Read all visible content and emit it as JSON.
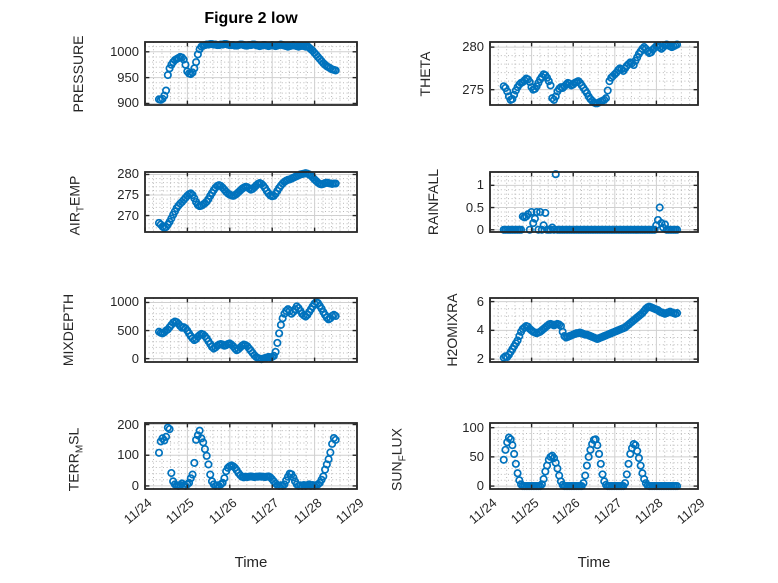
{
  "title": "Figure 2 low",
  "xlabel": "Time",
  "colors": {
    "marker": "#0072BD",
    "axis": "#262626",
    "grid_major": "#d0d0d0",
    "grid_minor": "#b9b9b9",
    "title_text": "#000000",
    "tick_text": "#262626"
  },
  "x_axis": {
    "tick_labels": [
      "11/24",
      "11/25",
      "11/26",
      "11/27",
      "11/28",
      "11/29"
    ],
    "range_days": [
      0,
      5
    ],
    "minor_step_days": 0.2
  },
  "sampling": {
    "start_day": 0.33,
    "step_days": 0.0416667
  },
  "chart_data": [
    {
      "id": "pressure",
      "type": "scatter",
      "marker": "open-circle",
      "ylabel": "PRESSURE",
      "ylabel_parts": [
        {
          "t": "PRESSURE"
        }
      ],
      "yticks": [
        1000,
        950,
        900
      ],
      "ytick_labels": [
        "1000",
        "950",
        "900"
      ],
      "ylim": [
        897,
        1019
      ],
      "yminor": 10,
      "values": [
        908,
        907,
        909,
        915,
        925,
        955,
        968,
        975,
        980,
        984,
        986,
        988,
        990,
        989,
        985,
        975,
        962,
        958,
        957,
        960,
        968,
        980,
        995,
        1005,
        1010,
        1012,
        1013,
        1014,
        1014,
        1015,
        1015,
        1014,
        1014,
        1013,
        1013,
        1014,
        1014,
        1015,
        1015,
        1014,
        1013,
        1013,
        1013,
        1012,
        1012,
        1013,
        1014,
        1014,
        1013,
        1012,
        1012,
        1013,
        1013,
        1014,
        1014,
        1013,
        1012,
        1011,
        1012,
        1013,
        1013,
        1012,
        1011,
        1012,
        1013,
        1012,
        1011,
        1012,
        1013,
        1014,
        1013,
        1012,
        1011,
        1010,
        1011,
        1012,
        1013,
        1012,
        1011,
        1010,
        1011,
        1012,
        1011,
        1010,
        1011,
        1008,
        1005,
        1002,
        998,
        994,
        990,
        986,
        982,
        978,
        975,
        972,
        970,
        968,
        966,
        965,
        964
      ]
    },
    {
      "id": "theta",
      "type": "scatter",
      "marker": "open-circle",
      "ylabel": "THETA",
      "ylabel_parts": [
        {
          "t": "THETA"
        }
      ],
      "yticks": [
        280,
        275
      ],
      "ytick_labels": [
        "280",
        "275"
      ],
      "ylim": [
        273.2,
        280.6
      ],
      "yminor": 1,
      "values": [
        275.4,
        275.2,
        274.8,
        274.2,
        273.8,
        273.9,
        274.4,
        274.9,
        275.3,
        275.6,
        275.8,
        275.9,
        276.1,
        276.3,
        276.2,
        275.9,
        275.3,
        275.0,
        275.1,
        275.4,
        275.8,
        276.2,
        276.5,
        276.8,
        276.7,
        276.4,
        276.0,
        275.5,
        274.0,
        273.8,
        274.2,
        274.8,
        275.1,
        275.3,
        275.2,
        275.4,
        275.6,
        275.8,
        275.7,
        275.5,
        275.6,
        275.8,
        275.9,
        276.0,
        275.8,
        275.5,
        275.2,
        274.9,
        274.6,
        274.2,
        273.9,
        273.7,
        273.5,
        273.4,
        273.4,
        273.5,
        273.6,
        273.7,
        273.8,
        274.0,
        274.9,
        276.0,
        276.4,
        276.6,
        276.8,
        277.0,
        277.3,
        277.5,
        277.4,
        277.2,
        277.5,
        277.8,
        278.0,
        278.2,
        278.1,
        277.9,
        278.4,
        278.8,
        279.2,
        279.5,
        279.8,
        280.0,
        279.8,
        279.5,
        279.3,
        279.4,
        279.7,
        279.9,
        280.1,
        280.2,
        280.0,
        279.8,
        280.0,
        280.2,
        280.3,
        280.2,
        280.1,
        280.0,
        280.1,
        280.2,
        280.3
      ]
    },
    {
      "id": "air_temp",
      "type": "scatter",
      "marker": "open-circle",
      "ylabel": "AIR_TEMP",
      "ylabel_parts": [
        {
          "t": "AIR"
        },
        {
          "t": "T",
          "sub": true
        },
        {
          "t": "EMP"
        }
      ],
      "yticks": [
        280,
        275,
        270
      ],
      "ytick_labels": [
        "280",
        "275",
        "270"
      ],
      "ylim": [
        266,
        280.6
      ],
      "yminor": 1,
      "values": [
        268.2,
        267.8,
        267.3,
        267.0,
        267.2,
        267.8,
        268.5,
        269.3,
        270.2,
        271.0,
        271.8,
        272.4,
        272.9,
        273.3,
        273.8,
        274.3,
        274.8,
        275.2,
        275.4,
        275.0,
        274.2,
        273.3,
        272.6,
        272.3,
        272.4,
        272.7,
        273.0,
        273.4,
        274.0,
        274.8,
        275.5,
        276.2,
        276.8,
        277.2,
        277.4,
        277.2,
        276.8,
        276.3,
        275.8,
        275.4,
        275.1,
        274.9,
        274.8,
        275.0,
        275.3,
        275.7,
        276.1,
        276.5,
        276.8,
        277.0,
        276.9,
        276.6,
        276.3,
        276.5,
        276.9,
        277.3,
        277.7,
        277.9,
        277.7,
        277.3,
        276.7,
        276.0,
        275.4,
        274.9,
        274.7,
        274.8,
        275.3,
        276.0,
        276.7,
        277.3,
        277.8,
        278.2,
        278.5,
        278.7,
        278.8,
        279.0,
        279.2,
        279.4,
        279.6,
        279.8,
        280.0,
        280.1,
        280.2,
        280.3,
        280.2,
        280.0,
        279.7,
        279.3,
        278.8,
        278.4,
        278.0,
        277.7,
        277.6,
        277.7,
        277.9,
        278.0,
        277.9,
        277.8,
        277.7,
        277.8,
        277.8
      ]
    },
    {
      "id": "rainfall",
      "type": "scatter",
      "marker": "open-circle",
      "ylabel": "RAINFALL",
      "ylabel_parts": [
        {
          "t": "RAINFALL"
        }
      ],
      "yticks": [
        1,
        0.5,
        0
      ],
      "ytick_labels": [
        "1",
        "0.5",
        "0"
      ],
      "ylim": [
        -0.05,
        1.3
      ],
      "yminor": 0.1,
      "values": [
        0,
        0,
        0,
        0,
        0,
        0,
        0,
        0,
        0,
        0,
        0,
        0.3,
        0.28,
        0.3,
        0.35,
        0,
        0.4,
        0.15,
        0.25,
        0.4,
        0,
        0.4,
        0,
        0.1,
        0.38,
        0,
        0,
        0,
        0.05,
        0,
        1.25,
        0,
        0,
        0,
        0,
        0,
        0,
        0,
        0,
        0,
        0,
        0,
        0,
        0,
        0,
        0,
        0,
        0,
        0,
        0,
        0,
        0,
        0,
        0,
        0,
        0,
        0,
        0,
        0,
        0,
        0,
        0,
        0,
        0,
        0,
        0,
        0,
        0,
        0,
        0,
        0,
        0,
        0,
        0,
        0,
        0,
        0,
        0,
        0,
        0,
        0,
        0,
        0,
        0,
        0,
        0,
        0,
        0,
        0.1,
        0.22,
        0.5,
        0.15,
        0.05,
        0.12,
        0,
        0,
        0,
        0,
        0,
        0,
        0
      ]
    },
    {
      "id": "mixdepth",
      "type": "scatter",
      "marker": "open-circle",
      "ylabel": "MIXDEPTH",
      "ylabel_parts": [
        {
          "t": "MIXDEPTH"
        }
      ],
      "yticks": [
        1000,
        500,
        0
      ],
      "ytick_labels": [
        "1000",
        "500",
        "0"
      ],
      "ylim": [
        -60,
        1080
      ],
      "yminor": 100,
      "values": [
        480,
        460,
        450,
        470,
        500,
        520,
        560,
        600,
        640,
        660,
        650,
        620,
        580,
        550,
        560,
        540,
        500,
        450,
        400,
        360,
        330,
        350,
        390,
        420,
        440,
        430,
        400,
        360,
        310,
        260,
        210,
        180,
        200,
        230,
        250,
        260,
        250,
        230,
        240,
        260,
        270,
        250,
        220,
        180,
        150,
        170,
        200,
        230,
        250,
        240,
        220,
        180,
        140,
        100,
        60,
        30,
        10,
        0,
        -10,
        0,
        10,
        20,
        30,
        20,
        30,
        50,
        120,
        280,
        450,
        600,
        720,
        800,
        850,
        880,
        850,
        800,
        830,
        880,
        930,
        900,
        850,
        800,
        770,
        750,
        780,
        830,
        880,
        930,
        980,
        1010,
        990,
        940,
        890,
        830,
        780,
        730,
        700,
        720,
        760,
        780,
        760
      ]
    },
    {
      "id": "h2omixra",
      "type": "scatter",
      "marker": "open-circle",
      "ylabel": "H2OMIXRA",
      "ylabel_parts": [
        {
          "t": "H2OMIXRA"
        }
      ],
      "yticks": [
        6,
        4,
        2
      ],
      "ytick_labels": [
        "6",
        "4",
        "2"
      ],
      "ylim": [
        1.8,
        6.25
      ],
      "yminor": 0.5,
      "values": [
        2.1,
        2.2,
        2.15,
        2.3,
        2.5,
        2.7,
        2.9,
        3.1,
        3.3,
        3.6,
        3.9,
        4.1,
        4.2,
        4.3,
        4.25,
        4.1,
        4.0,
        3.9,
        3.85,
        3.8,
        3.85,
        3.9,
        4.0,
        4.1,
        4.2,
        4.3,
        4.4,
        4.45,
        4.4,
        4.35,
        4.4,
        4.45,
        4.4,
        4.3,
        3.9,
        3.6,
        3.5,
        3.55,
        3.6,
        3.65,
        3.7,
        3.75,
        3.8,
        3.8,
        3.85,
        3.8,
        3.75,
        3.7,
        3.7,
        3.65,
        3.6,
        3.55,
        3.5,
        3.45,
        3.4,
        3.45,
        3.5,
        3.55,
        3.6,
        3.65,
        3.7,
        3.75,
        3.8,
        3.85,
        3.9,
        3.95,
        4.0,
        4.05,
        4.1,
        4.15,
        4.2,
        4.3,
        4.4,
        4.5,
        4.6,
        4.7,
        4.8,
        4.9,
        5.0,
        5.1,
        5.2,
        5.35,
        5.5,
        5.6,
        5.65,
        5.6,
        5.55,
        5.5,
        5.45,
        5.4,
        5.3,
        5.25,
        5.2,
        5.15,
        5.2,
        5.25,
        5.3,
        5.25,
        5.2,
        5.15,
        5.2
      ]
    },
    {
      "id": "terr_msl",
      "type": "scatter",
      "marker": "open-circle",
      "ylabel": "TERR_MSL",
      "ylabel_parts": [
        {
          "t": "TERR"
        },
        {
          "t": "M",
          "sub": true
        },
        {
          "t": "SL"
        }
      ],
      "yticks": [
        200,
        100,
        0
      ],
      "ytick_labels": [
        "200",
        "100",
        "0"
      ],
      "ylim": [
        -10,
        205
      ],
      "yminor": 20,
      "values": [
        108,
        145,
        155,
        148,
        160,
        190,
        185,
        42,
        15,
        5,
        2,
        0,
        3,
        8,
        2,
        0,
        5,
        10,
        25,
        37,
        75,
        150,
        165,
        180,
        155,
        142,
        120,
        98,
        70,
        37,
        15,
        5,
        0,
        2,
        0,
        5,
        10,
        25,
        48,
        59,
        64,
        67,
        64,
        59,
        51,
        42,
        35,
        30,
        28,
        30,
        29,
        30,
        31,
        30,
        29,
        30,
        30,
        31,
        30,
        30,
        29,
        30,
        31,
        28,
        22,
        15,
        8,
        3,
        0,
        2,
        0,
        5,
        18,
        30,
        40,
        38,
        28,
        15,
        5,
        0,
        2,
        0,
        3,
        0,
        2,
        5,
        0,
        3,
        0,
        2,
        5,
        10,
        20,
        31,
        53,
        70,
        87,
        109,
        137,
        156,
        150
      ]
    },
    {
      "id": "sun_flux",
      "type": "scatter",
      "marker": "open-circle",
      "ylabel": "SUN_FLUX",
      "ylabel_parts": [
        {
          "t": "SUN"
        },
        {
          "t": "F",
          "sub": true
        },
        {
          "t": "LUX"
        }
      ],
      "yticks": [
        100,
        50,
        0
      ],
      "ytick_labels": [
        "100",
        "50",
        "0"
      ],
      "ylim": [
        -5,
        108
      ],
      "yminor": 10,
      "values": [
        45,
        62,
        75,
        83,
        80,
        70,
        55,
        38,
        22,
        10,
        3,
        0,
        0,
        0,
        0,
        0,
        0,
        0,
        0,
        0,
        0,
        0,
        3,
        12,
        25,
        35,
        45,
        50,
        52,
        48,
        40,
        30,
        18,
        8,
        2,
        0,
        0,
        0,
        0,
        0,
        0,
        0,
        0,
        0,
        0,
        0,
        5,
        18,
        35,
        50,
        62,
        72,
        79,
        80,
        70,
        55,
        38,
        20,
        8,
        2,
        0,
        0,
        0,
        0,
        0,
        0,
        0,
        0,
        0,
        0,
        5,
        20,
        38,
        55,
        65,
        72,
        70,
        60,
        48,
        35,
        22,
        12,
        5,
        1,
        0,
        0,
        0,
        0,
        0,
        0,
        0,
        0,
        0,
        0,
        0,
        0,
        0,
        0,
        0,
        0,
        0
      ]
    }
  ]
}
